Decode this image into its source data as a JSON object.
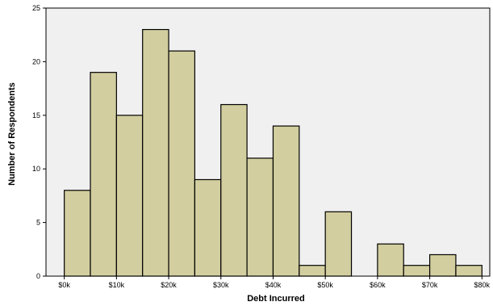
{
  "chart_data": {
    "type": "bar",
    "subtype": "histogram",
    "xlabel": "Debt Incurred",
    "ylabel": "Number of Respondents",
    "ylim": [
      0,
      25
    ],
    "yticks": [
      0,
      5,
      10,
      15,
      20,
      25
    ],
    "xlim": [
      0,
      80
    ],
    "xticks": [
      {
        "value": 0,
        "label": "$0k"
      },
      {
        "value": 10,
        "label": "$10k"
      },
      {
        "value": 20,
        "label": "$20k"
      },
      {
        "value": 30,
        "label": "$30k"
      },
      {
        "value": 40,
        "label": "$40k"
      },
      {
        "value": 50,
        "label": "$50k"
      },
      {
        "value": 60,
        "label": "$60k"
      },
      {
        "value": 70,
        "label": "$70k"
      },
      {
        "value": 80,
        "label": "$80k"
      }
    ],
    "bin_width": 5,
    "bins": [
      {
        "x0": 0,
        "x1": 5,
        "count": 8
      },
      {
        "x0": 5,
        "x1": 10,
        "count": 19
      },
      {
        "x0": 10,
        "x1": 15,
        "count": 15
      },
      {
        "x0": 15,
        "x1": 20,
        "count": 23
      },
      {
        "x0": 20,
        "x1": 25,
        "count": 21
      },
      {
        "x0": 25,
        "x1": 30,
        "count": 9
      },
      {
        "x0": 30,
        "x1": 35,
        "count": 16
      },
      {
        "x0": 35,
        "x1": 40,
        "count": 11
      },
      {
        "x0": 40,
        "x1": 45,
        "count": 14
      },
      {
        "x0": 45,
        "x1": 50,
        "count": 1
      },
      {
        "x0": 50,
        "x1": 55,
        "count": 6
      },
      {
        "x0": 55,
        "x1": 60,
        "count": 0
      },
      {
        "x0": 60,
        "x1": 65,
        "count": 3
      },
      {
        "x0": 65,
        "x1": 70,
        "count": 1
      },
      {
        "x0": 70,
        "x1": 75,
        "count": 2
      },
      {
        "x0": 75,
        "x1": 80,
        "count": 1
      }
    ],
    "grid": false,
    "colors": {
      "bar_fill": "#d3ce9f",
      "bar_stroke": "#000000",
      "plot_background": "#f0f0f0"
    }
  }
}
